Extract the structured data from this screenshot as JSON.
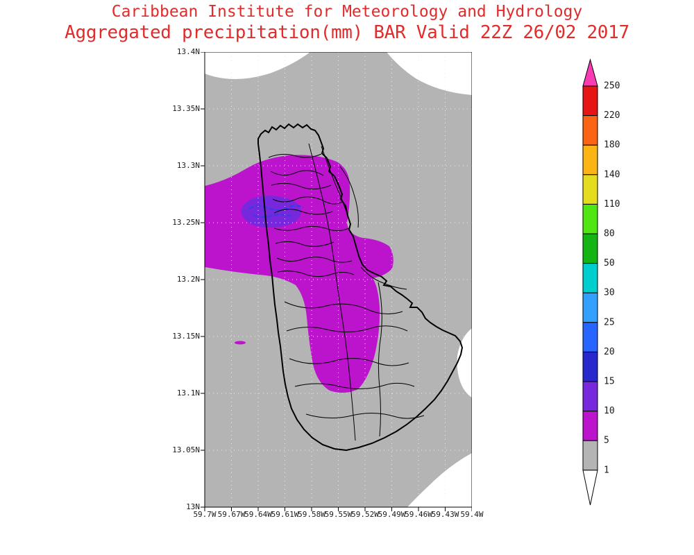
{
  "title": {
    "line1": "Caribbean Institute for Meteorology and Hydrology",
    "line2": "Aggregated precipitation(mm) BAR Valid 22Z 26/02 2017",
    "color": "#e22b2b"
  },
  "axes": {
    "y_labels": [
      "13.4N",
      "13.35N",
      "13.3N",
      "13.25N",
      "13.2N",
      "13.15N",
      "13.1N",
      "13.05N",
      "13N"
    ],
    "x_labels": [
      "59.7W",
      "59.67W",
      "59.64W",
      "59.61W",
      "59.58W",
      "59.55W",
      "59.52W",
      "59.49W",
      "59.46W",
      "59.43W",
      "59.4W"
    ]
  },
  "colorbar": {
    "labels_top_to_bottom": [
      "250",
      "220",
      "180",
      "140",
      "110",
      "80",
      "50",
      "30",
      "25",
      "20",
      "15",
      "10",
      "5",
      "1"
    ],
    "segments_top_to_bottom": [
      {
        "range": "above-250",
        "color": "#fa3cb4"
      },
      {
        "range": "220-250",
        "color": "#e61414"
      },
      {
        "range": "180-220",
        "color": "#fa6414"
      },
      {
        "range": "140-180",
        "color": "#fab414"
      },
      {
        "range": "110-140",
        "color": "#e6dc1e"
      },
      {
        "range": "80-110",
        "color": "#50e614"
      },
      {
        "range": "50-80",
        "color": "#14b414"
      },
      {
        "range": "30-50",
        "color": "#00cdcd"
      },
      {
        "range": "25-30",
        "color": "#32a0ff"
      },
      {
        "range": "20-25",
        "color": "#2864ff"
      },
      {
        "range": "15-20",
        "color": "#2828cd"
      },
      {
        "range": "10-15",
        "color": "#7828dc"
      },
      {
        "range": "5-10",
        "color": "#bc14cc"
      },
      {
        "range": "1-5",
        "color": "#b4b4b4"
      },
      {
        "range": "below-1",
        "color": "#ffffff"
      }
    ]
  },
  "map_colors": {
    "background_1_5": "#b4b4b4",
    "below_1": "#ffffff",
    "precip_5_10": "#bc14cc",
    "precip_10_15": "#7828dc",
    "precip_15_20": "#2f3fe0",
    "coastline": "#000000",
    "watershed": "#000000",
    "grid": "#ececec",
    "axis": "#000000"
  },
  "chart_data": {
    "type": "heatmap",
    "title": "Aggregated precipitation(mm) BAR Valid 22Z 26/02 2017",
    "source_line": "Caribbean Institute for Meteorology and Hydrology",
    "units": "mm",
    "lon_ticks": [
      "59.7W",
      "59.67W",
      "59.64W",
      "59.61W",
      "59.58W",
      "59.55W",
      "59.52W",
      "59.49W",
      "59.46W",
      "59.43W",
      "59.4W"
    ],
    "lat_ticks": [
      "13.4N",
      "13.35N",
      "13.3N",
      "13.25N",
      "13.2N",
      "13.15N",
      "13.1N",
      "13.05N",
      "13N"
    ],
    "contour_levels": [
      1,
      5,
      10,
      15,
      20,
      25,
      30,
      50,
      80,
      110,
      140,
      180,
      220,
      250
    ],
    "legend_position": "right",
    "depicted": [
      {
        "level_range": "1-5",
        "color": "#b4b4b4",
        "where": "most of the domain"
      },
      {
        "level_range": "below 1",
        "color": "#ffffff",
        "where": "top-left and top-right corners, mid-right edge near 13.15N, bottom-right corner"
      },
      {
        "level_range": "5-10",
        "color": "#bc14cc",
        "where": "north and central island extending west offshore near 13.25N, with a southern tongue reaching about 13.1N"
      },
      {
        "level_range": "10-15",
        "color": "#7828dc",
        "where": "small patch near 13.25N to 13.28N on the northwest of the island"
      },
      {
        "level_range": "15-20",
        "color": "#2f3fe0",
        "where": "tiny streaks near 13.25N 59.62W"
      }
    ]
  }
}
